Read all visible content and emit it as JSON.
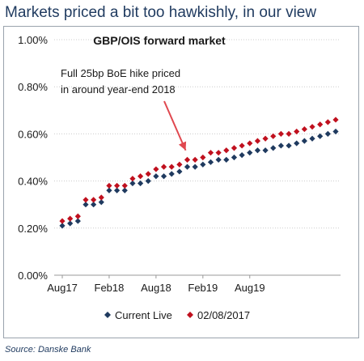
{
  "header": {
    "title": "Markets priced a bit too hawkishly, in our view"
  },
  "footer": {
    "source": "Source: Danske Bank"
  },
  "colors": {
    "current": "#1f3a5f",
    "previous": "#c0101e",
    "axis": "#999999",
    "grid": "#cccccc"
  },
  "chart_data": {
    "type": "scatter",
    "title": "GBP/OIS forward market",
    "xlabel": "",
    "ylabel": "",
    "ylim": [
      0,
      1.0
    ],
    "y_ticks": [
      "0.00%",
      "0.20%",
      "0.40%",
      "0.60%",
      "0.80%",
      "1.00%"
    ],
    "x_ticks": [
      "Aug17",
      "Feb18",
      "Aug18",
      "Feb19",
      "Aug19"
    ],
    "x_months": [
      "2017-08",
      "2017-09",
      "2017-10",
      "2017-11",
      "2017-12",
      "2018-01",
      "2018-02",
      "2018-03",
      "2018-04",
      "2018-05",
      "2018-06",
      "2018-07",
      "2018-08",
      "2018-09",
      "2018-10",
      "2018-11",
      "2018-12",
      "2019-01",
      "2019-02",
      "2019-03",
      "2019-04",
      "2019-05",
      "2019-06",
      "2019-07",
      "2019-08",
      "2019-09",
      "2019-10",
      "2019-11",
      "2019-12",
      "2020-01",
      "2020-02",
      "2020-03",
      "2020-04",
      "2020-05",
      "2020-06",
      "2020-07"
    ],
    "annotation": {
      "lines": [
        "Full 25bp BoE hike priced",
        "in around year-end 2018"
      ],
      "points_to": "2018-12"
    },
    "legend": {
      "position": "bottom"
    },
    "series": [
      {
        "name": "Current Live",
        "marker": "diamond",
        "values": [
          0.21,
          0.22,
          0.23,
          0.3,
          0.3,
          0.31,
          0.36,
          0.36,
          0.36,
          0.39,
          0.39,
          0.4,
          0.42,
          0.42,
          0.43,
          0.44,
          0.46,
          0.46,
          0.47,
          0.48,
          0.49,
          0.49,
          0.5,
          0.51,
          0.52,
          0.53,
          0.53,
          0.54,
          0.55,
          0.55,
          0.56,
          0.57,
          0.58,
          0.59,
          0.6,
          0.61
        ]
      },
      {
        "name": "02/08/2017",
        "marker": "diamond",
        "values": [
          0.23,
          0.24,
          0.25,
          0.32,
          0.32,
          0.33,
          0.38,
          0.38,
          0.38,
          0.41,
          0.42,
          0.43,
          0.45,
          0.46,
          0.46,
          0.47,
          0.49,
          0.49,
          0.5,
          0.52,
          0.52,
          0.53,
          0.54,
          0.55,
          0.56,
          0.57,
          0.58,
          0.59,
          0.6,
          0.6,
          0.61,
          0.62,
          0.63,
          0.64,
          0.65,
          0.66
        ]
      }
    ]
  }
}
